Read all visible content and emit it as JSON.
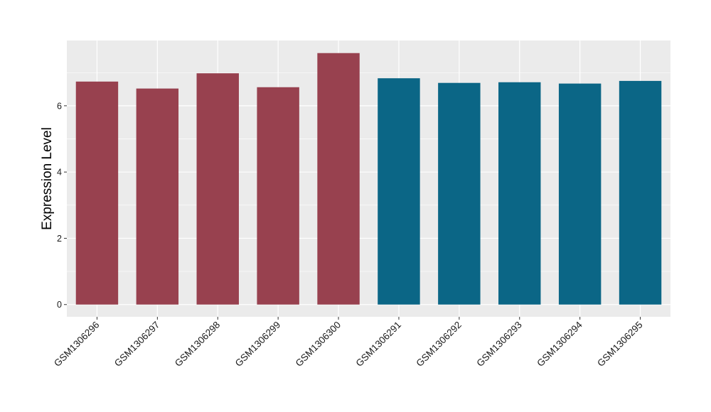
{
  "chart_data": {
    "type": "bar",
    "categories": [
      "GSM1306296",
      "GSM1306297",
      "GSM1306298",
      "GSM1306299",
      "GSM1306300",
      "GSM1306291",
      "GSM1306292",
      "GSM1306293",
      "GSM1306294",
      "GSM1306295"
    ],
    "values": [
      6.73,
      6.52,
      6.98,
      6.56,
      7.59,
      6.83,
      6.69,
      6.71,
      6.67,
      6.75
    ],
    "bar_colors": [
      "#98414f",
      "#98414f",
      "#98414f",
      "#98414f",
      "#98414f",
      "#0b6686",
      "#0b6686",
      "#0b6686",
      "#0b6686",
      "#0b6686"
    ],
    "title": "",
    "xlabel": "",
    "ylabel": "Expression Level",
    "ylim": [
      -0.37,
      7.97
    ],
    "yticks": [
      0,
      2,
      4,
      6
    ],
    "grid": true,
    "legend": "none",
    "panel_background": "#ebebeb",
    "grid_color": "#ffffff"
  }
}
